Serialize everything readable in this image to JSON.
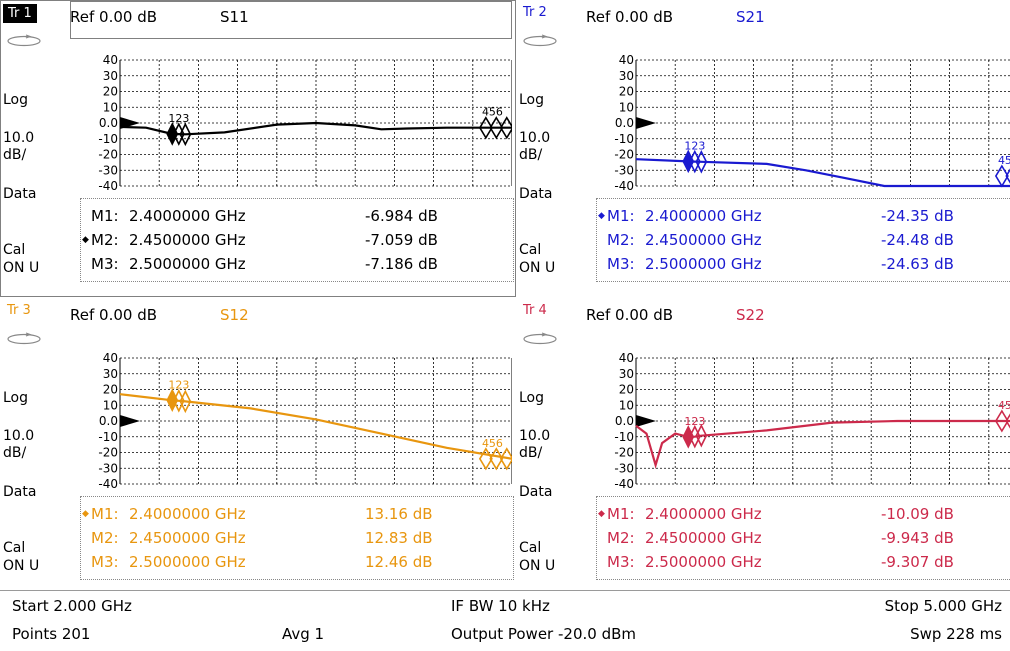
{
  "panels": [
    {
      "id": "tr1",
      "tr_label": "Tr 1",
      "ref": "Ref 0.00 dB",
      "param": "S11",
      "color": "#000000",
      "active": true,
      "side": {
        "format": "Log",
        "scale1": "10.0",
        "scale2": "dB/",
        "data": "Data",
        "cal1": "Cal",
        "cal2": "ON U"
      },
      "y_ticks": [
        "40",
        "30",
        "20",
        "10",
        "0.0",
        "-10",
        "-20",
        "-30",
        "-40"
      ],
      "marker_tags": [
        "123",
        "456"
      ],
      "trace_points": [
        [
          2.0,
          -2.5
        ],
        [
          2.2,
          -3
        ],
        [
          2.4,
          -6.98
        ],
        [
          2.45,
          -7.06
        ],
        [
          2.5,
          -7.19
        ],
        [
          2.8,
          -6
        ],
        [
          3.2,
          -1
        ],
        [
          3.5,
          0
        ],
        [
          3.8,
          -1.5
        ],
        [
          4.0,
          -4
        ],
        [
          4.2,
          -3.5
        ],
        [
          4.5,
          -3
        ],
        [
          4.8,
          -3
        ],
        [
          5.0,
          -3
        ]
      ],
      "markers": [
        {
          "name": "M1:",
          "freq": "2.4000000 GHz",
          "value": "-6.984 dB",
          "active": false
        },
        {
          "name": "M2:",
          "freq": "2.4500000 GHz",
          "value": "-7.059 dB",
          "active": true
        },
        {
          "name": "M3:",
          "freq": "2.5000000 GHz",
          "value": "-7.186 dB",
          "active": false
        }
      ]
    },
    {
      "id": "tr2",
      "tr_label": "Tr 2",
      "ref": "Ref 0.00 dB",
      "param": "S21",
      "color": "#1a1ad0",
      "active": false,
      "side": {
        "format": "Log",
        "scale1": "10.0",
        "scale2": "dB/",
        "data": "Data",
        "cal1": "Cal",
        "cal2": "ON U"
      },
      "y_ticks": [
        "40",
        "30",
        "20",
        "10",
        "0.0",
        "-10",
        "-20",
        "-30",
        "-40"
      ],
      "marker_tags": [
        "123",
        "45"
      ],
      "trace_points": [
        [
          2.0,
          -23
        ],
        [
          2.4,
          -24.35
        ],
        [
          2.45,
          -24.48
        ],
        [
          2.5,
          -24.63
        ],
        [
          3.0,
          -26
        ],
        [
          3.3,
          -30
        ],
        [
          3.6,
          -35
        ],
        [
          3.9,
          -40
        ],
        [
          4.2,
          -43
        ],
        [
          4.5,
          -43
        ],
        [
          4.8,
          -42
        ],
        [
          5.0,
          -43
        ]
      ],
      "markers": [
        {
          "name": "M1:",
          "freq": "2.4000000 GHz",
          "value": "-24.35 dB",
          "active": true
        },
        {
          "name": "M2:",
          "freq": "2.4500000 GHz",
          "value": "-24.48 dB",
          "active": false
        },
        {
          "name": "M3:",
          "freq": "2.5000000 GHz",
          "value": "-24.63 dB",
          "active": false
        }
      ]
    },
    {
      "id": "tr3",
      "tr_label": "Tr 3",
      "ref": "Ref 0.00 dB",
      "param": "S12",
      "color": "#e8960f",
      "active": false,
      "side": {
        "format": "Log",
        "scale1": "10.0",
        "scale2": "dB/",
        "data": "Data",
        "cal1": "Cal",
        "cal2": "ON U"
      },
      "y_ticks": [
        "40",
        "30",
        "20",
        "10",
        "0.0",
        "-10",
        "-20",
        "-30",
        "-40"
      ],
      "marker_tags": [
        "123",
        "456"
      ],
      "trace_points": [
        [
          2.0,
          17
        ],
        [
          2.4,
          13.16
        ],
        [
          2.45,
          12.83
        ],
        [
          2.5,
          12.46
        ],
        [
          3.0,
          8
        ],
        [
          3.5,
          1
        ],
        [
          4.0,
          -8
        ],
        [
          4.5,
          -17
        ],
        [
          5.0,
          -24
        ]
      ],
      "markers": [
        {
          "name": "M1:",
          "freq": "2.4000000 GHz",
          "value": "13.16 dB",
          "active": true
        },
        {
          "name": "M2:",
          "freq": "2.4500000 GHz",
          "value": "12.83 dB",
          "active": false
        },
        {
          "name": "M3:",
          "freq": "2.5000000 GHz",
          "value": "12.46 dB",
          "active": false
        }
      ]
    },
    {
      "id": "tr4",
      "tr_label": "Tr 4",
      "ref": "Ref 0.00 dB",
      "param": "S22",
      "color": "#cc2a4b",
      "active": false,
      "side": {
        "format": "Log",
        "scale1": "10.0",
        "scale2": "dB/",
        "data": "Data",
        "cal1": "Cal",
        "cal2": "ON U"
      },
      "y_ticks": [
        "40",
        "30",
        "20",
        "10",
        "0.0",
        "-10",
        "-20",
        "-30",
        "-40"
      ],
      "marker_tags": [
        "123",
        "45"
      ],
      "trace_points": [
        [
          2.0,
          -3
        ],
        [
          2.08,
          -8
        ],
        [
          2.15,
          -28
        ],
        [
          2.2,
          -14
        ],
        [
          2.3,
          -8
        ],
        [
          2.4,
          -10.09
        ],
        [
          2.45,
          -9.94
        ],
        [
          2.5,
          -9.31
        ],
        [
          3.0,
          -6
        ],
        [
          3.5,
          -1
        ],
        [
          4.0,
          0
        ],
        [
          4.5,
          0
        ],
        [
          5.0,
          0
        ]
      ],
      "markers": [
        {
          "name": "M1:",
          "freq": "2.4000000 GHz",
          "value": "-10.09 dB",
          "active": true
        },
        {
          "name": "M2:",
          "freq": "2.4500000 GHz",
          "value": "-9.943 dB",
          "active": false
        },
        {
          "name": "M3:",
          "freq": "2.5000000 GHz",
          "value": "-9.307 dB",
          "active": false
        }
      ]
    }
  ],
  "status": {
    "start": "Start 2.000 GHz",
    "ifbw": "IF BW 10 kHz",
    "stop": "Stop 5.000 GHz",
    "points": "Points 201",
    "avg": "Avg  1",
    "power": "Output Power -20.0 dBm",
    "sweep": "Swp 228 ms"
  }
}
